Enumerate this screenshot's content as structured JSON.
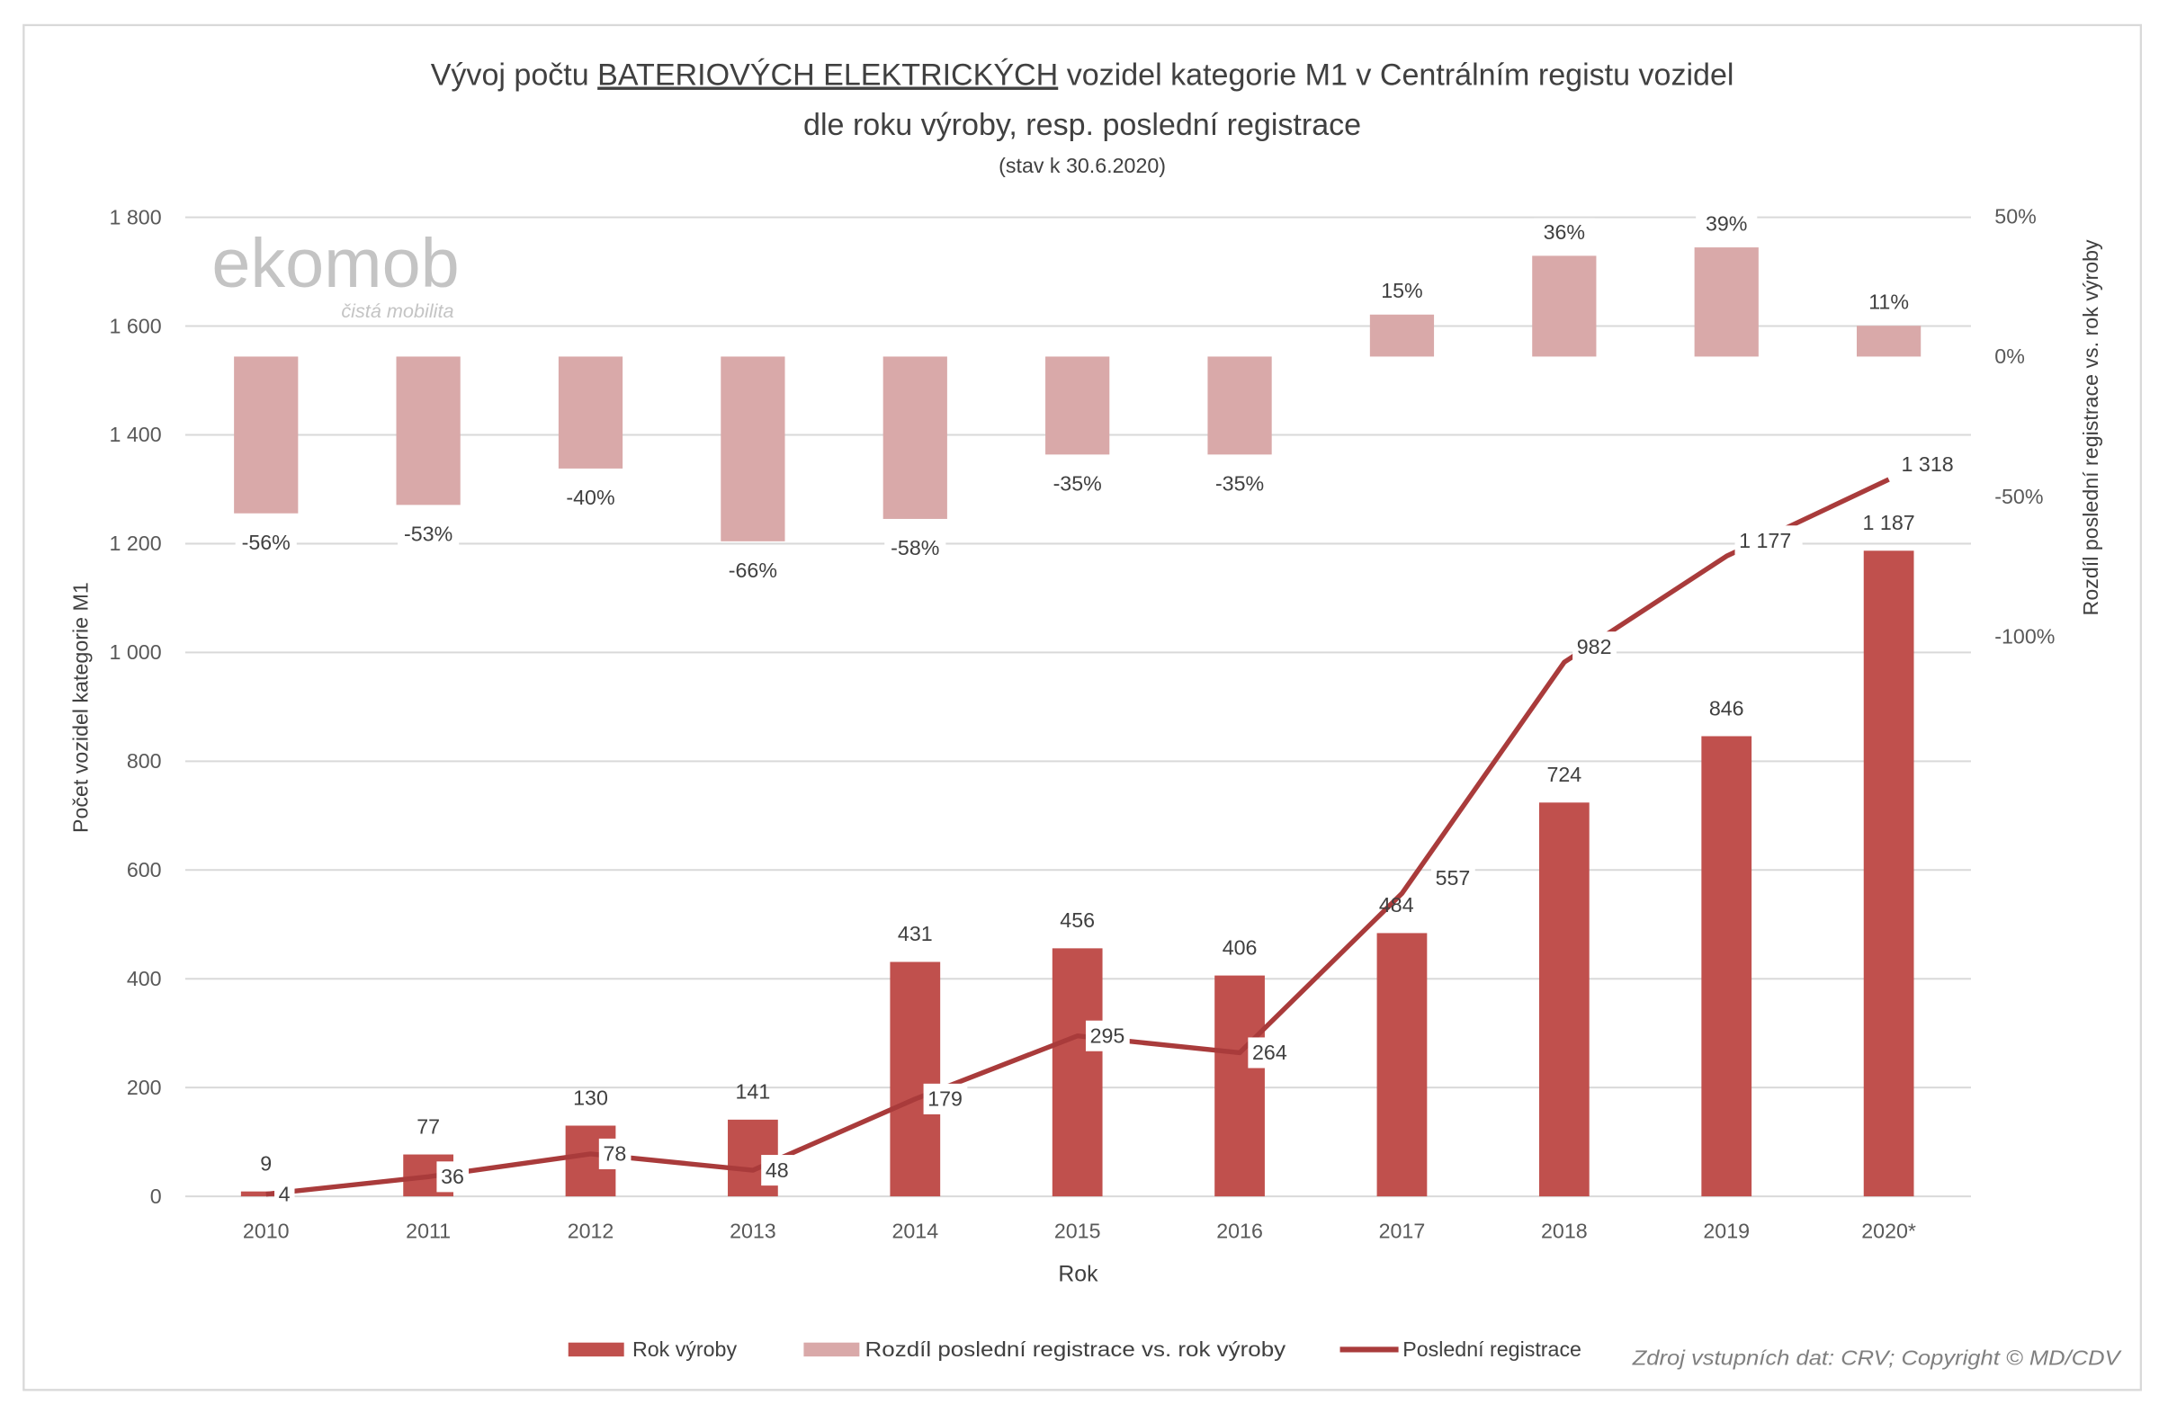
{
  "chart_data": {
    "type": "bar+line",
    "title_parts": [
      "Vývoj počtu ",
      "BATERIOVÝCH ELEKTRICKÝCH",
      " vozidel kategorie M1 v Centrálním registu vozidel"
    ],
    "title_line2": "dle roku výroby, resp. poslední registrace",
    "subtitle": "(stav k 30.6.2020)",
    "xlabel": "Rok",
    "ylabel": "Počet vozidel kategorie M1",
    "y2label": "Rozdíl poslední registrace vs. rok výroby",
    "ylim": [
      0,
      1800
    ],
    "y_ticks": [
      0,
      200,
      400,
      600,
      800,
      1000,
      1200,
      1400,
      1600,
      1800
    ],
    "y_tick_labels": [
      "0",
      "200",
      "400",
      "600",
      "800",
      "1 000",
      "1 200",
      "1 400",
      "1 600",
      "1 800"
    ],
    "y2_ticks": [
      50,
      0,
      -50,
      -100
    ],
    "y2_tick_labels": [
      "50%",
      "0%",
      "-50%",
      "-100%"
    ],
    "categories": [
      "2010",
      "2011",
      "2012",
      "2013",
      "2014",
      "2015",
      "2016",
      "2017",
      "2018",
      "2019",
      "2020*"
    ],
    "series": [
      {
        "name": "Rok výroby",
        "type": "bar",
        "axis": "left",
        "color": "#c0504d",
        "values": [
          9,
          77,
          130,
          141,
          431,
          456,
          406,
          484,
          724,
          846,
          1187
        ],
        "labels": [
          "9",
          "77",
          "130",
          "141",
          "431",
          "456",
          "406",
          "484",
          "724",
          "846",
          "1 187"
        ]
      },
      {
        "name": "Rozdíl poslední registrace vs. rok výroby",
        "type": "bar",
        "axis": "right",
        "color": "#d9a9a9",
        "values": [
          -56,
          -53,
          -40,
          -66,
          -58,
          -35,
          -35,
          15,
          36,
          39,
          11
        ],
        "labels": [
          "-56%",
          "-53%",
          "-40%",
          "-66%",
          "-58%",
          "-35%",
          "-35%",
          "15%",
          "36%",
          "39%",
          "11%"
        ]
      },
      {
        "name": "Poslední registrace",
        "type": "line",
        "axis": "left",
        "color": "#a93b3b",
        "values": [
          4,
          36,
          78,
          48,
          179,
          295,
          264,
          557,
          982,
          1177,
          1318
        ],
        "labels": [
          "4",
          "36",
          "78",
          "48",
          "179",
          "295",
          "264",
          "557",
          "982",
          "1 177",
          "1 318"
        ]
      }
    ],
    "grid": true,
    "legend_position": "bottom",
    "source_note": "Zdroj vstupních dat: CRV; Copyright © MD/CDV"
  },
  "logo": {
    "name": "ekomob",
    "tagline": "čistá mobilita"
  }
}
